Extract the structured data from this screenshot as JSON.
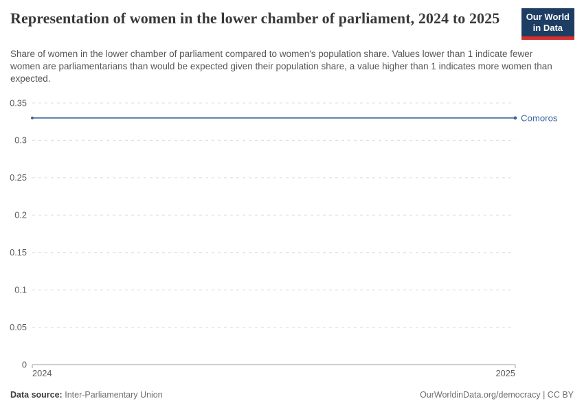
{
  "header": {
    "title": "Representation of women in the lower chamber of parliament, 2024 to 2025",
    "subtitle": "Share of women in the lower chamber of parliament compared to women's population share. Values lower than 1 indicate fewer women are parliamentarians than would be expected given their population share, a value higher than 1 indicates more women than expected."
  },
  "logo": {
    "line1": "Our World",
    "line2": "in Data",
    "bg_color": "#1d3d63",
    "accent_color": "#d4302e"
  },
  "chart_data": {
    "type": "line",
    "title": "Representation of women in the lower chamber of parliament",
    "x": [
      2024,
      2025
    ],
    "series": [
      {
        "name": "Comoros",
        "values": [
          0.33,
          0.33
        ],
        "color": "#3d649f"
      }
    ],
    "ylim": [
      0,
      0.35
    ],
    "yticks": [
      0,
      0.05,
      0.1,
      0.15,
      0.2,
      0.25,
      0.3,
      0.35
    ],
    "ytick_labels": [
      "0",
      "0.05",
      "0.1",
      "0.15",
      "0.2",
      "0.25",
      "0.3",
      "0.35"
    ],
    "xticks": [
      2024,
      2025
    ],
    "xtick_labels": [
      "2024",
      "2025"
    ],
    "grid": "horizontal-dashed",
    "legend_position": "end-of-line",
    "gridline_color": "#dcdcdc",
    "axis_color": "#9e9e9e",
    "tick_label_color": "#5c5c5c"
  },
  "footer": {
    "data_source_label": "Data source:",
    "data_source_value": "Inter-Parliamentary Union",
    "credit": "OurWorldinData.org/democracy | CC BY"
  }
}
